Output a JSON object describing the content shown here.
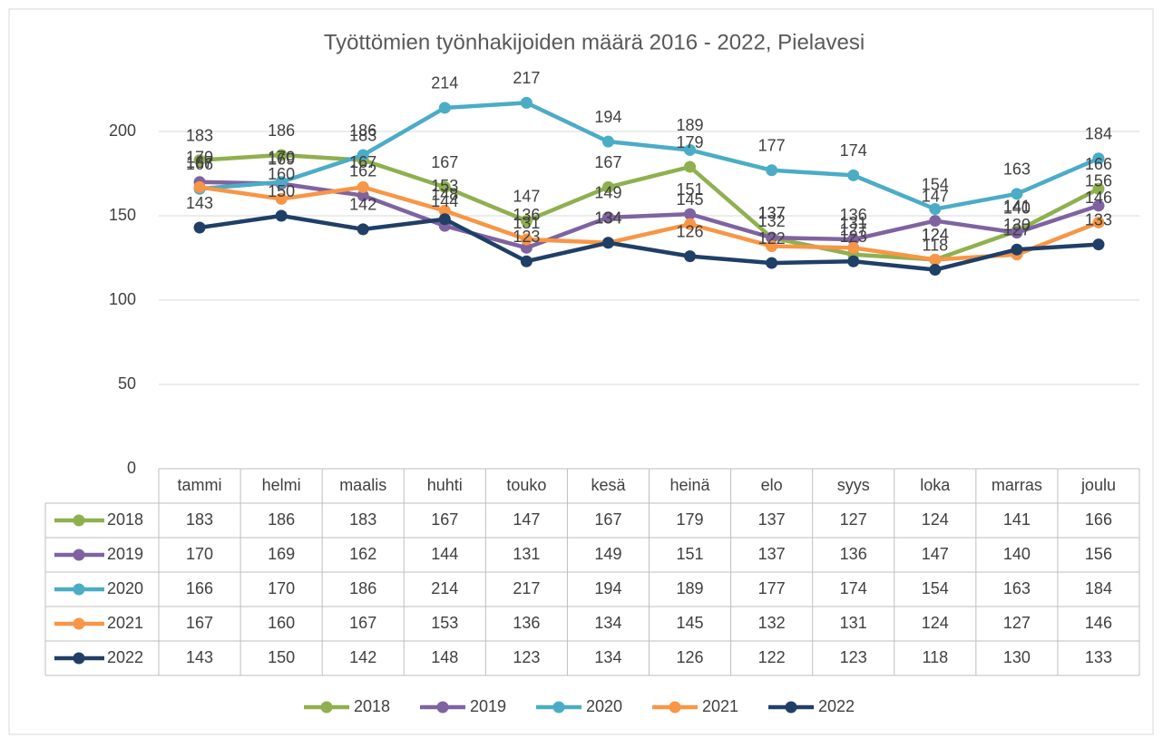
{
  "chart_data": {
    "type": "line",
    "title": "Työttömien työnhakijoiden määrä 2016 - 2022, Pielavesi",
    "categories": [
      "tammi",
      "helmi",
      "maalis",
      "huhti",
      "touko",
      "kesä",
      "heinä",
      "elo",
      "syys",
      "loka",
      "marras",
      "joulu"
    ],
    "series": [
      {
        "name": "2018",
        "color": "#8fb04f",
        "values": [
          183,
          186,
          183,
          167,
          147,
          167,
          179,
          137,
          127,
          124,
          141,
          166
        ]
      },
      {
        "name": "2019",
        "color": "#7f63a1",
        "values": [
          170,
          169,
          162,
          144,
          131,
          149,
          151,
          137,
          136,
          147,
          140,
          156
        ]
      },
      {
        "name": "2020",
        "color": "#4bacc6",
        "values": [
          166,
          170,
          186,
          214,
          217,
          194,
          189,
          177,
          174,
          154,
          163,
          184
        ]
      },
      {
        "name": "2021",
        "color": "#f79646",
        "values": [
          167,
          160,
          167,
          153,
          136,
          134,
          145,
          132,
          131,
          124,
          127,
          146
        ]
      },
      {
        "name": "2022",
        "color": "#203f66",
        "values": [
          143,
          150,
          142,
          148,
          123,
          134,
          126,
          122,
          123,
          118,
          130,
          133
        ]
      }
    ],
    "ylim": [
      0,
      250
    ],
    "yticks": [
      0,
      50,
      100,
      150,
      200
    ],
    "grid": true,
    "data_labels": true,
    "data_table": true,
    "legend": "bottom"
  }
}
